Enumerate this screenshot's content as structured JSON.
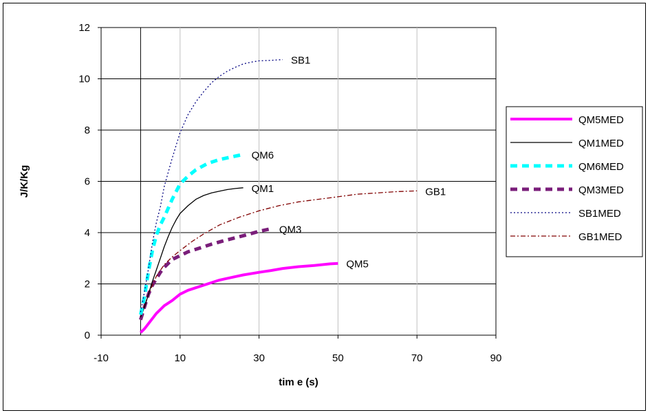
{
  "chart_data": {
    "type": "line",
    "title": "",
    "xlabel": "tim e (s)",
    "ylabel": "J/K/Kg",
    "xlim": [
      -10,
      90
    ],
    "ylim": [
      0,
      12
    ],
    "xticks": [
      -10,
      10,
      30,
      50,
      70,
      90
    ],
    "yticks": [
      0,
      2,
      4,
      6,
      8,
      10,
      12
    ],
    "grid": true,
    "legend_position": "right",
    "series": [
      {
        "name": "QM5MED",
        "label": "QM5",
        "color": "#ff00ff",
        "style": "solid-thick",
        "x": [
          0,
          1,
          2,
          3,
          4,
          5,
          6,
          8,
          10,
          12,
          15,
          18,
          20,
          23,
          26,
          30,
          33,
          36,
          40,
          44,
          48,
          50
        ],
        "y": [
          0.1,
          0.25,
          0.45,
          0.65,
          0.85,
          1.0,
          1.15,
          1.35,
          1.6,
          1.75,
          1.9,
          2.05,
          2.15,
          2.25,
          2.35,
          2.45,
          2.52,
          2.6,
          2.67,
          2.72,
          2.78,
          2.8
        ]
      },
      {
        "name": "QM1MED",
        "label": "QM1",
        "color": "#000000",
        "style": "solid",
        "x": [
          0,
          1,
          2,
          3,
          4,
          5,
          6,
          7,
          8,
          9,
          10,
          12,
          14,
          16,
          18,
          20,
          22,
          24,
          26
        ],
        "y": [
          0.7,
          1.1,
          1.6,
          2.1,
          2.55,
          3.0,
          3.45,
          3.85,
          4.2,
          4.5,
          4.75,
          5.05,
          5.3,
          5.45,
          5.55,
          5.62,
          5.68,
          5.72,
          5.75
        ]
      },
      {
        "name": "QM6MED",
        "label": "QM6",
        "color": "#00ffff",
        "style": "dashed-thick",
        "x": [
          0,
          1,
          2,
          3,
          4,
          5,
          6,
          8,
          10,
          12,
          14,
          17,
          20,
          23,
          26
        ],
        "y": [
          0.8,
          1.5,
          2.5,
          3.3,
          3.9,
          4.3,
          4.6,
          5.3,
          5.9,
          6.2,
          6.45,
          6.7,
          6.85,
          6.95,
          7.05
        ]
      },
      {
        "name": "QM3MED",
        "label": "QM3",
        "color": "#7a1e7a",
        "style": "dashed-thick",
        "x": [
          0,
          1,
          2,
          3,
          4,
          5,
          6,
          8,
          10,
          12,
          15,
          18,
          21,
          24,
          27,
          30,
          33
        ],
        "y": [
          0.6,
          1.1,
          1.6,
          1.95,
          2.2,
          2.45,
          2.65,
          2.95,
          3.1,
          3.25,
          3.4,
          3.55,
          3.68,
          3.8,
          3.92,
          4.05,
          4.15
        ]
      },
      {
        "name": "SB1MED",
        "label": "SB1",
        "color": "#000080",
        "style": "dotted",
        "x": [
          0,
          1,
          2,
          3,
          4,
          5,
          6,
          8,
          10,
          12,
          14,
          16,
          18,
          20,
          22,
          24,
          26,
          28,
          30,
          33,
          36
        ],
        "y": [
          0.9,
          1.7,
          2.6,
          3.6,
          4.4,
          5.0,
          5.8,
          6.9,
          7.9,
          8.6,
          9.1,
          9.5,
          9.85,
          10.1,
          10.3,
          10.45,
          10.58,
          10.65,
          10.7,
          10.72,
          10.75
        ]
      },
      {
        "name": "GB1MED",
        "label": "GB1",
        "color": "#800000",
        "style": "dashdot",
        "x": [
          0,
          2,
          4,
          6,
          8,
          10,
          13,
          16,
          20,
          25,
          30,
          35,
          40,
          45,
          50,
          55,
          60,
          65,
          70
        ],
        "y": [
          0.7,
          1.6,
          2.3,
          2.75,
          3.05,
          3.3,
          3.65,
          3.95,
          4.3,
          4.6,
          4.85,
          5.05,
          5.2,
          5.3,
          5.4,
          5.5,
          5.55,
          5.6,
          5.63
        ]
      }
    ]
  }
}
